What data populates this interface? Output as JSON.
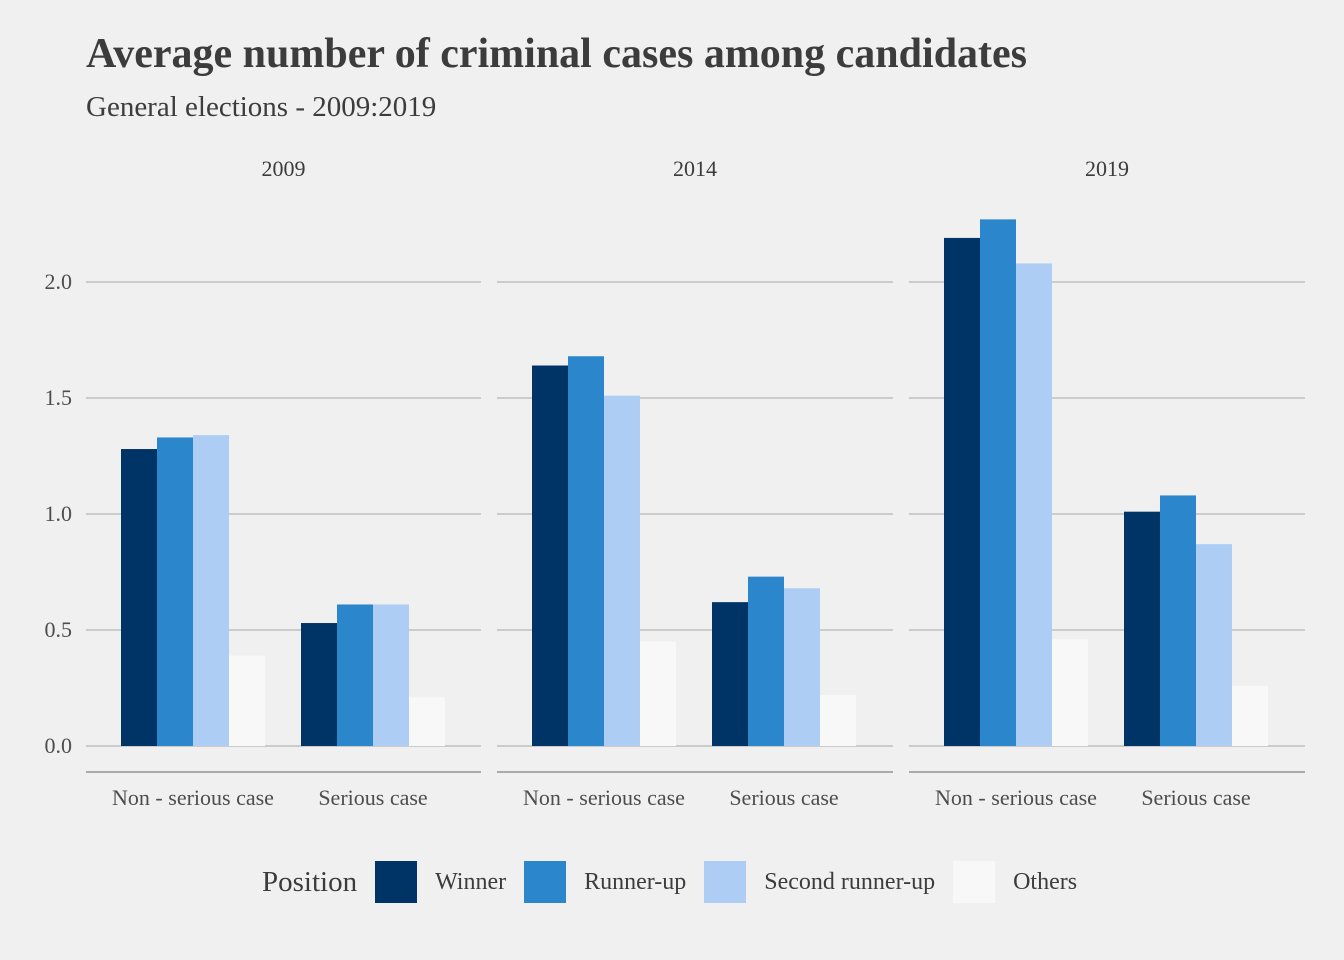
{
  "title": "Average number of criminal cases among candidates",
  "subtitle": "General elections - 2009:2019",
  "legend": {
    "title": "Position",
    "items": [
      {
        "label": "Winner",
        "color": "#003366"
      },
      {
        "label": "Runner-up",
        "color": "#2b86cc"
      },
      {
        "label": "Second runner-up",
        "color": "#adcdf5"
      },
      {
        "label": "Others",
        "color": "#f8f8f8"
      }
    ]
  },
  "chart_data": {
    "type": "bar",
    "facets": [
      "2009",
      "2014",
      "2019"
    ],
    "categories": [
      "Non - serious case",
      "Serious case"
    ],
    "ylim": [
      0,
      2.25
    ],
    "y_ticks": [
      "0.0",
      "0.5",
      "1.0",
      "1.5",
      "2.0"
    ],
    "grid": true,
    "legend_position": "bottom",
    "series": [
      {
        "name": "Winner",
        "color": "#003366",
        "values": {
          "2009": [
            1.28,
            0.53
          ],
          "2014": [
            1.64,
            0.62
          ],
          "2019": [
            2.19,
            1.01
          ]
        }
      },
      {
        "name": "Runner-up",
        "color": "#2b86cc",
        "values": {
          "2009": [
            1.33,
            0.61
          ],
          "2014": [
            1.68,
            0.73
          ],
          "2019": [
            2.27,
            1.08
          ]
        }
      },
      {
        "name": "Second runner-up",
        "color": "#adcdf5",
        "values": {
          "2009": [
            1.34,
            0.61
          ],
          "2014": [
            1.51,
            0.68
          ],
          "2019": [
            2.08,
            0.87
          ]
        }
      },
      {
        "name": "Others",
        "color": "#f8f8f8",
        "values": {
          "2009": [
            0.39,
            0.21
          ],
          "2014": [
            0.45,
            0.22
          ],
          "2019": [
            0.46,
            0.26
          ]
        }
      }
    ]
  }
}
